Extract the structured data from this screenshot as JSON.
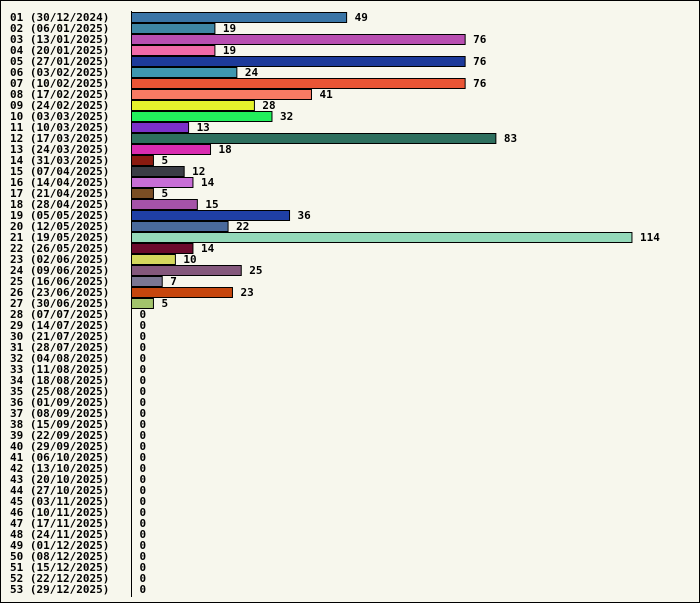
{
  "chart_data": {
    "type": "bar",
    "orientation": "horizontal",
    "title": "",
    "xlabel": "",
    "ylabel": "",
    "xlim": [
      0,
      114
    ],
    "grid": false,
    "legend": "none",
    "categories": [
      "01 (30/12/2024)",
      "02 (06/01/2025)",
      "03 (13/01/2025)",
      "04 (20/01/2025)",
      "05 (27/01/2025)",
      "06 (03/02/2025)",
      "07 (10/02/2025)",
      "08 (17/02/2025)",
      "09 (24/02/2025)",
      "10 (03/03/2025)",
      "11 (10/03/2025)",
      "12 (17/03/2025)",
      "13 (24/03/2025)",
      "14 (31/03/2025)",
      "15 (07/04/2025)",
      "16 (14/04/2025)",
      "17 (21/04/2025)",
      "18 (28/04/2025)",
      "19 (05/05/2025)",
      "20 (12/05/2025)",
      "21 (19/05/2025)",
      "22 (26/05/2025)",
      "23 (02/06/2025)",
      "24 (09/06/2025)",
      "25 (16/06/2025)",
      "26 (23/06/2025)",
      "27 (30/06/2025)",
      "28 (07/07/2025)",
      "29 (14/07/2025)",
      "30 (21/07/2025)",
      "31 (28/07/2025)",
      "32 (04/08/2025)",
      "33 (11/08/2025)",
      "34 (18/08/2025)",
      "35 (25/08/2025)",
      "36 (01/09/2025)",
      "37 (08/09/2025)",
      "38 (15/09/2025)",
      "39 (22/09/2025)",
      "40 (29/09/2025)",
      "41 (06/10/2025)",
      "42 (13/10/2025)",
      "43 (20/10/2025)",
      "44 (27/10/2025)",
      "45 (03/11/2025)",
      "46 (10/11/2025)",
      "47 (17/11/2025)",
      "48 (24/11/2025)",
      "49 (01/12/2025)",
      "50 (08/12/2025)",
      "51 (15/12/2025)",
      "52 (22/12/2025)",
      "53 (29/12/2025)"
    ],
    "values": [
      49,
      19,
      76,
      19,
      76,
      24,
      76,
      41,
      28,
      32,
      13,
      83,
      18,
      5,
      12,
      14,
      5,
      15,
      36,
      22,
      114,
      14,
      10,
      25,
      7,
      23,
      5,
      0,
      0,
      0,
      0,
      0,
      0,
      0,
      0,
      0,
      0,
      0,
      0,
      0,
      0,
      0,
      0,
      0,
      0,
      0,
      0,
      0,
      0,
      0,
      0,
      0,
      0
    ],
    "colors": [
      "#3a75a6",
      "#3e86a4",
      "#b84fb1",
      "#f06aa8",
      "#1d3a9a",
      "#3e97b0",
      "#ea5535",
      "#f77a63",
      "#e4f22c",
      "#22f05c",
      "#7b30c9",
      "#2e6f5e",
      "#d92cb0",
      "#8a1a10",
      "#3a3c45",
      "#c86ed6",
      "#7a4e24",
      "#a553a8",
      "#1f3fa5",
      "#4a6a9c",
      "#94d9b9",
      "#6b0a2c",
      "#d4d75d",
      "#84587c",
      "#7b7692",
      "#c6460d",
      "#a3c46c"
    ],
    "bar_border_color": "#000000",
    "plot_background": "#f7f7ed"
  }
}
